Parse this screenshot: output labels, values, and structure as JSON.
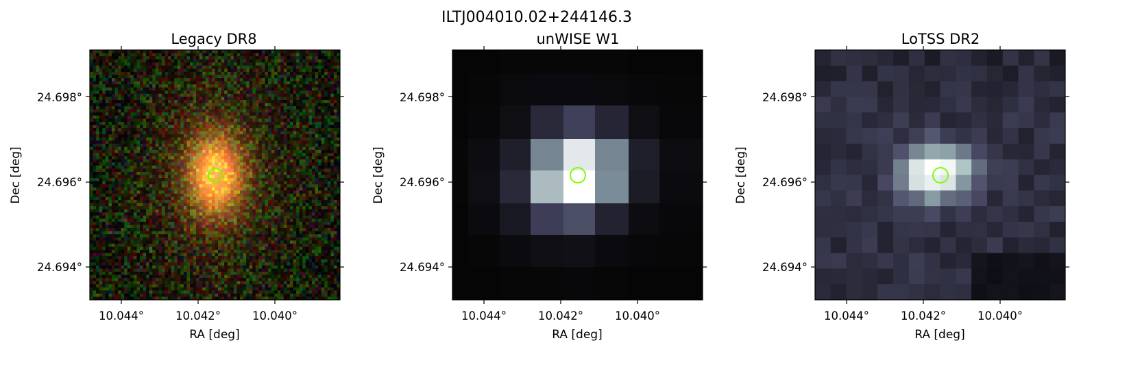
{
  "figure": {
    "title": "ILTJ004010.02+244146.3"
  },
  "panels": [
    {
      "id": "legacy",
      "title": "Legacy DR8",
      "xlabel": "RA [deg]",
      "ylabel": "Dec [deg]",
      "xticks": [
        "10.044°",
        "10.042°",
        "10.040°"
      ],
      "yticks": [
        "24.698°",
        "24.696°",
        "24.694°"
      ],
      "image": "optical color cutout, orange galaxy centered on noisy red/green/blue background",
      "marker": "green circle"
    },
    {
      "id": "unwise",
      "title": "unWISE W1",
      "xlabel": "RA [deg]",
      "ylabel": "Dec [deg]",
      "xticks": [
        "10.044°",
        "10.042°",
        "10.040°"
      ],
      "yticks": [
        "24.698°",
        "24.696°",
        "24.694°"
      ],
      "image": "coarse grayscale pixel cutout, bright source at center",
      "marker": "green circle"
    },
    {
      "id": "lotss",
      "title": "LoTSS DR2",
      "xlabel": "RA [deg]",
      "ylabel": "Dec [deg]",
      "xticks": [
        "10.044°",
        "10.042°",
        "10.040°"
      ],
      "yticks": [
        "24.698°",
        "24.696°",
        "24.694°"
      ],
      "image": "purple-gray radio cutout, bright blob at center",
      "marker": "green circle"
    }
  ],
  "colors": {
    "marker": "#7cfc00",
    "unwise_cmap": [
      "#050505",
      "#3b3b55",
      "#8aa0a8",
      "#ffffff"
    ],
    "lotss_cmap": [
      "#0a0a0f",
      "#4a4a66",
      "#9fb9b9",
      "#ffffff"
    ]
  }
}
